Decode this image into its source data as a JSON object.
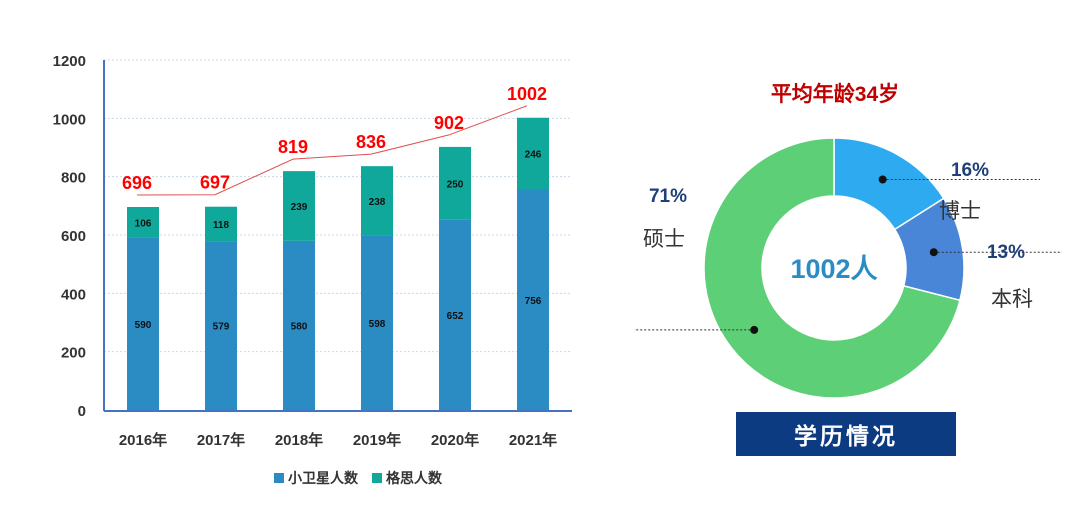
{
  "chart_data": [
    {
      "type": "bar",
      "stacked": true,
      "categories": [
        "2016年",
        "2017年",
        "2018年",
        "2019年",
        "2020年",
        "2021年"
      ],
      "series": [
        {
          "name": "小卫星人数",
          "values": [
            590,
            579,
            580,
            598,
            652,
            756
          ],
          "color": "#2b8cc4"
        },
        {
          "name": "格思人数",
          "values": [
            106,
            118,
            239,
            238,
            250,
            246
          ],
          "color": "#0fa89a"
        }
      ],
      "totals": [
        696,
        697,
        819,
        836,
        902,
        1002
      ],
      "total_label_color": "#ff0000",
      "total_line_color": "#e05050",
      "yticks": [
        0,
        200,
        400,
        600,
        800,
        1000,
        1200
      ],
      "ylim": [
        0,
        1200
      ],
      "grid": true,
      "legend": "bottom"
    },
    {
      "type": "pie",
      "donut": true,
      "title": "平均年龄34岁",
      "center_label": "1002人",
      "slices": [
        {
          "label": "博士",
          "percent_label": "16%",
          "value": 16,
          "color": "#2eaaf0"
        },
        {
          "label": "本科",
          "percent_label": "13%",
          "value": 13,
          "color": "#4a86d8"
        },
        {
          "label": "硕士",
          "percent_label": "71%",
          "value": 71,
          "color": "#5ccf77"
        }
      ]
    }
  ],
  "banner": "学历情况"
}
